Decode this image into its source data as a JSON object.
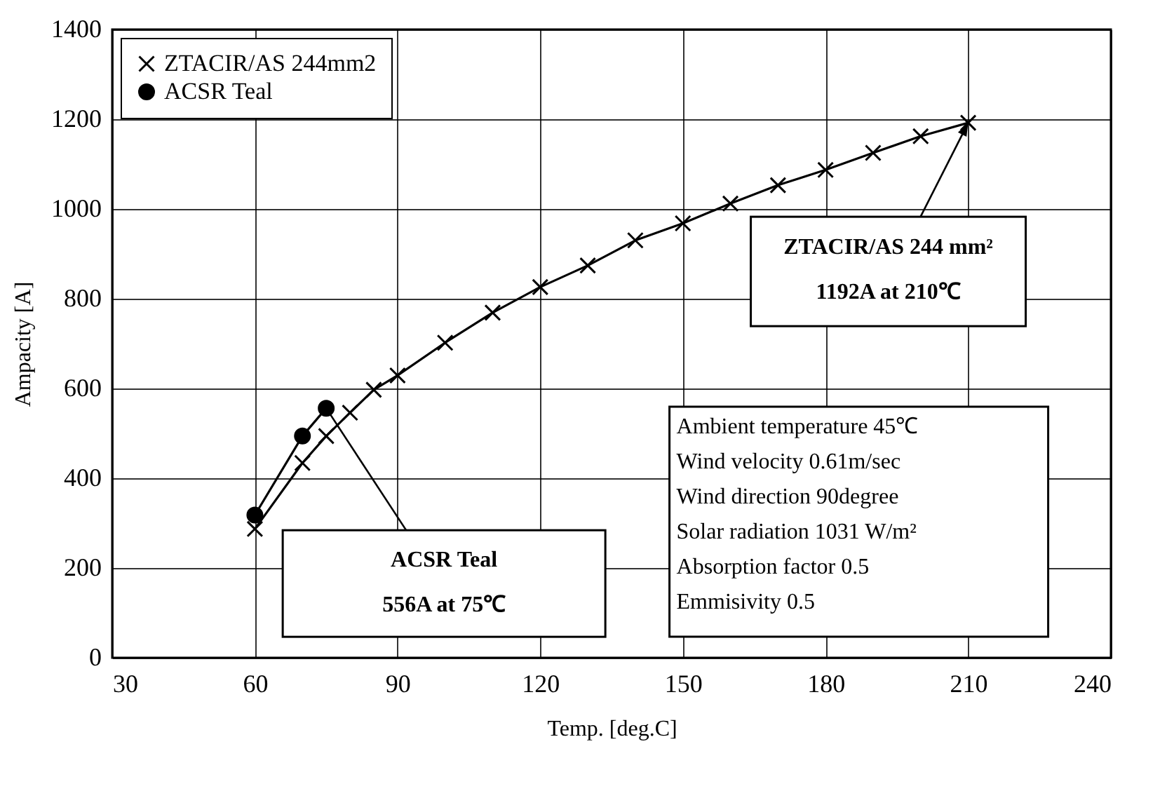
{
  "chart_data": {
    "type": "line",
    "xlabel": "Temp. [deg.C]",
    "ylabel": "Ampacity [A]",
    "xlim": [
      30,
      240
    ],
    "xticks": [
      30,
      60,
      90,
      120,
      150,
      180,
      210,
      240
    ],
    "ylim": [
      0,
      1400
    ],
    "yticks": [
      0,
      200,
      400,
      600,
      800,
      1000,
      1200,
      1400
    ],
    "grid": true,
    "legend": "top left",
    "series": [
      {
        "name": "ZTACIR/AS 244mm2",
        "color": "#000000",
        "marker": "cross",
        "x": [
          60,
          70,
          75,
          80,
          85,
          90,
          100,
          110,
          120,
          130,
          140,
          150,
          160,
          170,
          180,
          190,
          200,
          210
        ],
        "values": [
          287,
          434,
          494,
          546,
          597,
          629,
          702,
          769,
          826,
          874,
          930,
          968,
          1012,
          1053,
          1087,
          1125,
          1162,
          1192
        ]
      },
      {
        "name": "ACSR Teal",
        "color": "#000000",
        "marker": "circle",
        "x": [
          60,
          70,
          75
        ],
        "values": [
          318,
          494,
          556
        ]
      }
    ],
    "annotations": [
      {
        "text": "ACSR Teal\n556A at 75℃",
        "x": 75,
        "y": 556
      },
      {
        "text": "ZTACIR/AS 244 mm²\n1192A at 210℃",
        "x": 210,
        "y": 1192
      },
      "Ambient temperature 45℃",
      "Wind velocity 0.61m/sec",
      "Wind direction 90degree",
      "Solar radiation 1031 W/m²",
      "Absorption factor 0.5",
      "Emmisivity 0.5"
    ]
  }
}
